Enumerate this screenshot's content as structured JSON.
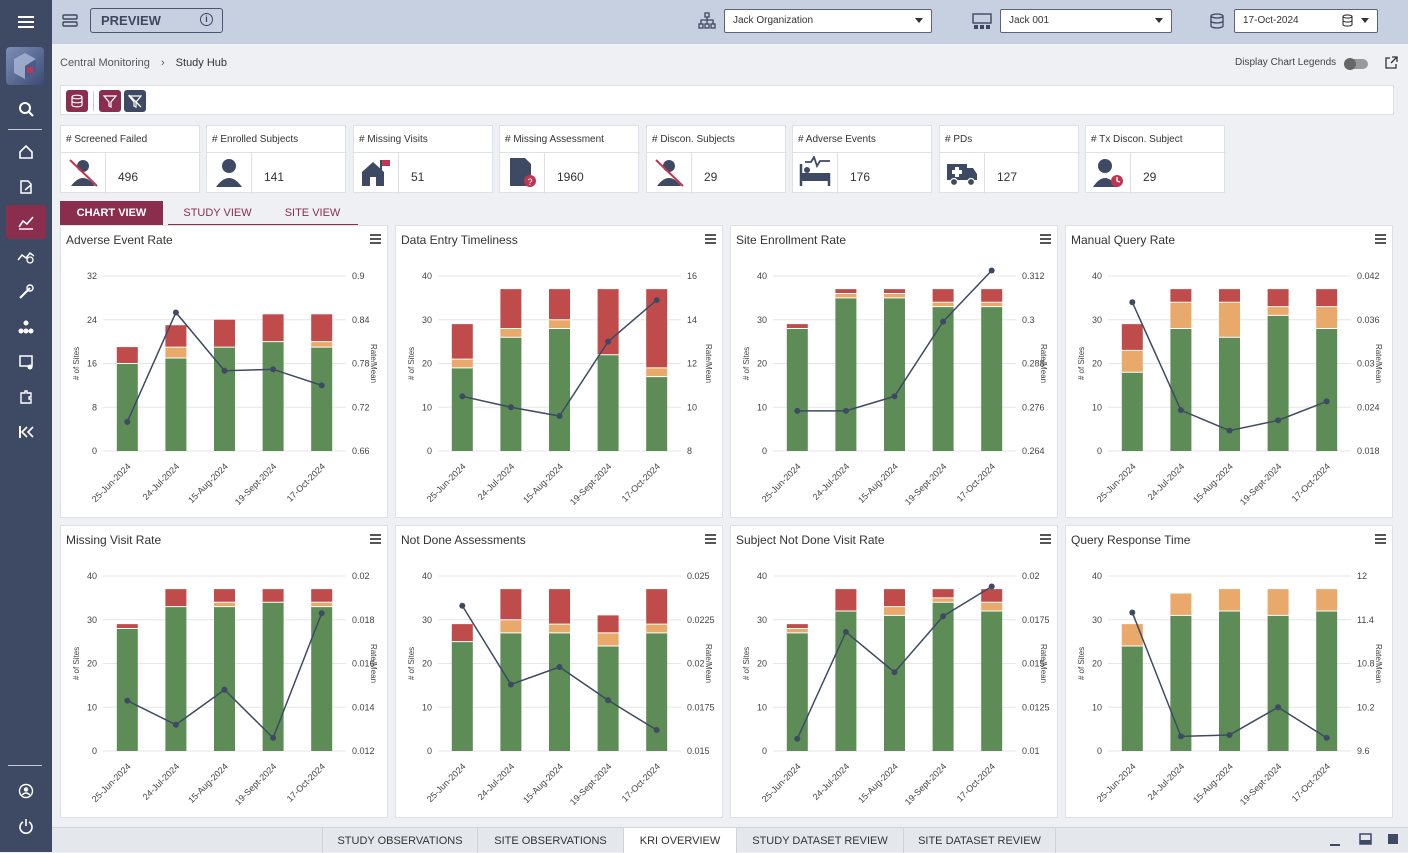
{
  "topbar": {
    "preview_label": "PREVIEW",
    "organization": "Jack Organization",
    "study": "Jack 001",
    "date": "17-Oct-2024"
  },
  "breadcrumb": [
    "Central Monitoring",
    "Study Hub"
  ],
  "display_legends_label": "Display Chart Legends",
  "kpis": [
    {
      "label": "# Screened Failed",
      "value": "496",
      "icon": "person-crossed-icon"
    },
    {
      "label": "# Enrolled Subjects",
      "value": "141",
      "icon": "person-icon"
    },
    {
      "label": "# Missing Visits",
      "value": "51",
      "icon": "house-flag-icon"
    },
    {
      "label": "# Missing Assessment",
      "value": "1960",
      "icon": "document-question-icon"
    },
    {
      "label": "# Discon. Subjects",
      "value": "29",
      "icon": "person-crossed-icon"
    },
    {
      "label": "# Adverse Events",
      "value": "176",
      "icon": "bed-pulse-icon"
    },
    {
      "label": "# PDs",
      "value": "127",
      "icon": "ambulance-icon"
    },
    {
      "label": "# Tx Discon. Subject",
      "value": "29",
      "icon": "person-clock-icon"
    }
  ],
  "view_tabs": [
    "CHART VIEW",
    "STUDY VIEW",
    "SITE VIEW"
  ],
  "bottom_tabs": [
    "STUDY OBSERVATIONS",
    "SITE OBSERVATIONS",
    "KRI OVERVIEW",
    "STUDY DATASET REVIEW",
    "SITE DATASET REVIEW"
  ],
  "colors": {
    "green": "#5e8c57",
    "orange": "#e9a96a",
    "red": "#bf4c4a",
    "line": "#3e4a63",
    "accent": "#8b2e4e"
  },
  "chart_data": [
    {
      "type": "bar",
      "title": "Adverse Event Rate",
      "categories": [
        "25-Jun-2024",
        "24-Jul-2024",
        "15-Aug-2024",
        "19-Sept-2024",
        "17-Oct-2024"
      ],
      "ylabel": "# of Sites",
      "y2label": "Rate/Mean",
      "ylim": [
        0,
        32
      ],
      "yticks": [
        0,
        8,
        16,
        24,
        32
      ],
      "y2lim": [
        0.66,
        0.9
      ],
      "y2ticks": [
        "0.66",
        "0.72",
        "0.78",
        "0.84",
        "0.9"
      ],
      "series": [
        {
          "values": [
            16,
            17,
            19,
            20,
            19
          ]
        },
        {
          "values": [
            0,
            2,
            0,
            0,
            1
          ]
        },
        {
          "values": [
            3,
            4,
            5,
            5,
            5
          ]
        }
      ],
      "line": [
        0.7,
        0.85,
        0.77,
        0.772,
        0.75
      ]
    },
    {
      "type": "bar",
      "title": "Data Entry Timeliness",
      "categories": [
        "25-Jun-2024",
        "24-Jul-2024",
        "15-Aug-2024",
        "19-Sept-2024",
        "17-Oct-2024"
      ],
      "ylabel": "# of Sites",
      "y2label": "Rate/Mean",
      "ylim": [
        0,
        40
      ],
      "yticks": [
        0,
        10,
        20,
        30,
        40
      ],
      "y2lim": [
        8,
        16
      ],
      "y2ticks": [
        "8",
        "10",
        "12",
        "14",
        "16"
      ],
      "series": [
        {
          "values": [
            19,
            26,
            28,
            22,
            17
          ]
        },
        {
          "values": [
            2,
            2,
            2,
            0,
            2
          ]
        },
        {
          "values": [
            8,
            9,
            7,
            15,
            18
          ]
        }
      ],
      "line": [
        10.5,
        10.0,
        9.6,
        13.0,
        14.9
      ]
    },
    {
      "type": "bar",
      "title": "Site Enrollment Rate",
      "categories": [
        "25-Jun-2024",
        "24-Jul-2024",
        "15-Aug-2024",
        "19-Sept-2024",
        "17-Oct-2024"
      ],
      "ylabel": "# of Sites",
      "y2label": "Rate/Mean",
      "ylim": [
        0,
        40
      ],
      "yticks": [
        0,
        10,
        20,
        30,
        40
      ],
      "y2lim": [
        0.264,
        0.312
      ],
      "y2ticks": [
        "0.264",
        "0.276",
        "0.288",
        "0.3",
        "0.312"
      ],
      "series": [
        {
          "values": [
            28,
            35,
            35,
            33,
            33
          ]
        },
        {
          "values": [
            0,
            1,
            1,
            1,
            1
          ]
        },
        {
          "values": [
            1,
            1,
            1,
            3,
            3
          ]
        }
      ],
      "line": [
        0.275,
        0.275,
        0.279,
        0.2995,
        0.3135
      ]
    },
    {
      "type": "bar",
      "title": "Manual Query Rate",
      "categories": [
        "25-Jun-2024",
        "24-Jul-2024",
        "15-Aug-2024",
        "19-Sept-2024",
        "17-Oct-2024"
      ],
      "ylabel": "# of Sites",
      "y2label": "Rate/Mean",
      "ylim": [
        0,
        40
      ],
      "yticks": [
        0,
        10,
        20,
        30,
        40
      ],
      "y2lim": [
        0.018,
        0.042
      ],
      "y2ticks": [
        "0.018",
        "0.024",
        "0.03",
        "0.036",
        "0.042"
      ],
      "series": [
        {
          "values": [
            18,
            28,
            26,
            31,
            28
          ]
        },
        {
          "values": [
            5,
            6,
            8,
            2,
            5
          ]
        },
        {
          "values": [
            6,
            3,
            3,
            4,
            4
          ]
        }
      ],
      "line": [
        0.0384,
        0.0236,
        0.0208,
        0.0222,
        0.0248
      ]
    },
    {
      "type": "bar",
      "title": "Missing Visit Rate",
      "categories": [
        "25-Jun-2024",
        "24-Jul-2024",
        "15-Aug-2024",
        "19-Sept-2024",
        "17-Oct-2024"
      ],
      "ylabel": "# of Sites",
      "y2label": "Rate/Mean",
      "ylim": [
        0,
        40
      ],
      "yticks": [
        0,
        10,
        20,
        30,
        40
      ],
      "y2lim": [
        0.012,
        0.02
      ],
      "y2ticks": [
        "0.012",
        "0.014",
        "0.016",
        "0.018",
        "0.02"
      ],
      "series": [
        {
          "values": [
            28,
            33,
            33,
            34,
            33
          ]
        },
        {
          "values": [
            0,
            0,
            1,
            0,
            1
          ]
        },
        {
          "values": [
            1,
            4,
            3,
            3,
            3
          ]
        }
      ],
      "line": [
        0.0143,
        0.0132,
        0.0148,
        0.0126,
        0.0183
      ]
    },
    {
      "type": "bar",
      "title": "Not Done Assessments",
      "categories": [
        "25-Jun-2024",
        "24-Jul-2024",
        "15-Aug-2024",
        "19-Sept-2024",
        "17-Oct-2024"
      ],
      "ylabel": "# of Sites",
      "y2label": "Rate/Mean",
      "ylim": [
        0,
        40
      ],
      "yticks": [
        0,
        10,
        20,
        30,
        40
      ],
      "y2lim": [
        0.015,
        0.025
      ],
      "y2ticks": [
        "0.015",
        "0.0175",
        "0.02",
        "0.0225",
        "0.025"
      ],
      "series": [
        {
          "values": [
            25,
            27,
            27,
            24,
            27
          ]
        },
        {
          "values": [
            0,
            3,
            2,
            3,
            2
          ]
        },
        {
          "values": [
            4,
            7,
            8,
            4,
            8
          ]
        }
      ],
      "line": [
        0.0233,
        0.0188,
        0.0198,
        0.0179,
        0.0162
      ]
    },
    {
      "type": "bar",
      "title": "Subject Not Done Visit Rate",
      "categories": [
        "25-Jun-2024",
        "24-Jul-2024",
        "15-Aug-2024",
        "19-Sept-2024",
        "17-Oct-2024"
      ],
      "ylabel": "# of Sites",
      "y2label": "Rate/Mean",
      "ylim": [
        0,
        40
      ],
      "yticks": [
        0,
        10,
        20,
        30,
        40
      ],
      "y2lim": [
        0.01,
        0.02
      ],
      "y2ticks": [
        "0.01",
        "0.0125",
        "0.015",
        "0.0175",
        "0.02"
      ],
      "series": [
        {
          "values": [
            27,
            32,
            31,
            34,
            32
          ]
        },
        {
          "values": [
            1,
            0,
            2,
            1,
            2
          ]
        },
        {
          "values": [
            1,
            5,
            4,
            2,
            3
          ]
        }
      ],
      "line": [
        0.0107,
        0.0168,
        0.0145,
        0.0177,
        0.0194
      ]
    },
    {
      "type": "bar",
      "title": "Query Response Time",
      "categories": [
        "25-Jun-2024",
        "24-Jul-2024",
        "15-Aug-2024",
        "19-Sept-2024",
        "17-Oct-2024"
      ],
      "ylabel": "# of Sites",
      "y2label": "Rate/Mean",
      "ylim": [
        0,
        40
      ],
      "yticks": [
        0,
        10,
        20,
        30,
        40
      ],
      "y2lim": [
        9.6,
        12
      ],
      "y2ticks": [
        "9.6",
        "10.2",
        "10.8",
        "11.4",
        "12"
      ],
      "series": [
        {
          "values": [
            24,
            31,
            32,
            31,
            32
          ]
        },
        {
          "values": [
            5,
            5,
            5,
            6,
            5
          ]
        },
        {
          "values": [
            0,
            0,
            0,
            0,
            0
          ]
        }
      ],
      "line": [
        11.5,
        9.8,
        9.82,
        10.2,
        9.78
      ]
    }
  ]
}
